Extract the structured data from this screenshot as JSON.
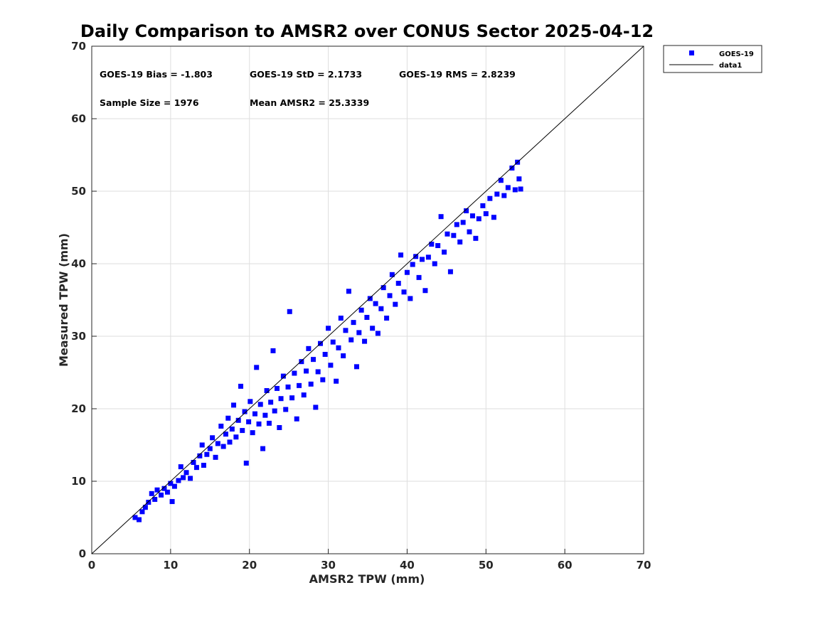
{
  "chart_data": {
    "type": "scatter",
    "title": "Daily Comparison to AMSR2 over CONUS Sector 2025-04-12",
    "xlabel": "AMSR2 TPW (mm)",
    "ylabel": "Measured TPW (mm)",
    "xlim": [
      0,
      70
    ],
    "ylim": [
      0,
      70
    ],
    "xticks": [
      "0",
      "10",
      "20",
      "30",
      "40",
      "50",
      "60",
      "70"
    ],
    "yticks": [
      "0",
      "10",
      "20",
      "30",
      "40",
      "50",
      "60",
      "70"
    ],
    "grid": true,
    "legend_position": "outside-top-right",
    "annotations": [
      "GOES-19 Bias = -1.803",
      "GOES-19 StD = 2.1733",
      "GOES-19 RMS = 2.8239",
      "Sample Size = 1976",
      "Mean AMSR2 = 25.3339"
    ],
    "series": [
      {
        "name": "GOES-19",
        "kind": "scatter",
        "marker": "square",
        "color": "#0000ff",
        "points": [
          [
            5.5,
            5.0
          ],
          [
            6.0,
            4.7
          ],
          [
            6.4,
            5.8
          ],
          [
            6.8,
            6.4
          ],
          [
            7.2,
            7.1
          ],
          [
            7.6,
            8.3
          ],
          [
            8.0,
            7.5
          ],
          [
            8.3,
            8.8
          ],
          [
            8.8,
            8.1
          ],
          [
            9.2,
            9.0
          ],
          [
            9.6,
            8.5
          ],
          [
            10.0,
            9.7
          ],
          [
            10.2,
            7.2
          ],
          [
            10.5,
            9.3
          ],
          [
            11.0,
            10.1
          ],
          [
            11.3,
            12.0
          ],
          [
            11.6,
            10.5
          ],
          [
            12.0,
            11.2
          ],
          [
            12.5,
            10.4
          ],
          [
            12.9,
            12.6
          ],
          [
            13.3,
            11.9
          ],
          [
            13.7,
            13.5
          ],
          [
            14.0,
            15.0
          ],
          [
            14.2,
            12.2
          ],
          [
            14.6,
            13.7
          ],
          [
            15.0,
            14.5
          ],
          [
            15.3,
            16.0
          ],
          [
            15.7,
            13.3
          ],
          [
            16.0,
            15.2
          ],
          [
            16.4,
            17.6
          ],
          [
            16.7,
            14.8
          ],
          [
            17.0,
            16.5
          ],
          [
            17.3,
            18.7
          ],
          [
            17.5,
            15.4
          ],
          [
            17.8,
            17.2
          ],
          [
            18.0,
            20.5
          ],
          [
            18.3,
            16.1
          ],
          [
            18.6,
            18.4
          ],
          [
            18.9,
            23.1
          ],
          [
            19.1,
            17.0
          ],
          [
            19.4,
            19.6
          ],
          [
            19.6,
            12.5
          ],
          [
            19.9,
            18.2
          ],
          [
            20.1,
            21.0
          ],
          [
            20.4,
            16.7
          ],
          [
            20.7,
            19.3
          ],
          [
            20.9,
            25.7
          ],
          [
            21.2,
            17.9
          ],
          [
            21.4,
            20.6
          ],
          [
            21.7,
            14.5
          ],
          [
            22.0,
            19.1
          ],
          [
            22.2,
            22.5
          ],
          [
            22.5,
            18.0
          ],
          [
            22.7,
            20.9
          ],
          [
            23.0,
            28.0
          ],
          [
            23.2,
            19.7
          ],
          [
            23.5,
            22.8
          ],
          [
            23.8,
            17.4
          ],
          [
            24.0,
            21.4
          ],
          [
            24.3,
            24.5
          ],
          [
            24.6,
            19.9
          ],
          [
            24.9,
            23.0
          ],
          [
            25.1,
            33.4
          ],
          [
            25.4,
            21.5
          ],
          [
            25.7,
            24.9
          ],
          [
            26.0,
            18.6
          ],
          [
            26.3,
            23.2
          ],
          [
            26.6,
            26.5
          ],
          [
            26.9,
            21.9
          ],
          [
            27.2,
            25.2
          ],
          [
            27.5,
            28.3
          ],
          [
            27.8,
            23.4
          ],
          [
            28.1,
            26.8
          ],
          [
            28.4,
            20.2
          ],
          [
            28.7,
            25.1
          ],
          [
            29.0,
            29.0
          ],
          [
            29.3,
            24.0
          ],
          [
            29.6,
            27.5
          ],
          [
            30.0,
            31.1
          ],
          [
            30.3,
            26.0
          ],
          [
            30.6,
            29.2
          ],
          [
            31.0,
            23.8
          ],
          [
            31.3,
            28.4
          ],
          [
            31.6,
            32.5
          ],
          [
            31.9,
            27.3
          ],
          [
            32.2,
            30.8
          ],
          [
            32.6,
            36.2
          ],
          [
            32.9,
            29.5
          ],
          [
            33.2,
            31.9
          ],
          [
            33.6,
            25.8
          ],
          [
            33.9,
            30.5
          ],
          [
            34.2,
            33.6
          ],
          [
            34.6,
            29.3
          ],
          [
            34.9,
            32.6
          ],
          [
            35.3,
            35.2
          ],
          [
            35.6,
            31.1
          ],
          [
            36.0,
            34.5
          ],
          [
            36.3,
            30.4
          ],
          [
            36.7,
            33.8
          ],
          [
            37.0,
            36.7
          ],
          [
            37.4,
            32.5
          ],
          [
            37.8,
            35.6
          ],
          [
            38.1,
            38.5
          ],
          [
            38.5,
            34.4
          ],
          [
            38.9,
            37.3
          ],
          [
            39.2,
            41.2
          ],
          [
            39.6,
            36.1
          ],
          [
            40.0,
            38.8
          ],
          [
            40.4,
            35.2
          ],
          [
            40.7,
            39.9
          ],
          [
            41.1,
            41.0
          ],
          [
            41.5,
            38.1
          ],
          [
            41.9,
            40.6
          ],
          [
            42.3,
            36.3
          ],
          [
            42.7,
            40.9
          ],
          [
            43.1,
            42.7
          ],
          [
            43.5,
            40.0
          ],
          [
            43.9,
            42.5
          ],
          [
            44.3,
            46.5
          ],
          [
            44.7,
            41.6
          ],
          [
            45.1,
            44.1
          ],
          [
            45.5,
            38.9
          ],
          [
            45.9,
            43.9
          ],
          [
            46.3,
            45.4
          ],
          [
            46.7,
            43.0
          ],
          [
            47.1,
            45.7
          ],
          [
            47.5,
            47.3
          ],
          [
            47.9,
            44.4
          ],
          [
            48.3,
            46.6
          ],
          [
            48.7,
            43.5
          ],
          [
            49.1,
            46.2
          ],
          [
            49.6,
            48.0
          ],
          [
            50.0,
            46.9
          ],
          [
            50.5,
            49.0
          ],
          [
            51.0,
            46.4
          ],
          [
            51.4,
            49.6
          ],
          [
            51.9,
            51.5
          ],
          [
            52.3,
            49.4
          ],
          [
            52.8,
            50.5
          ],
          [
            53.3,
            53.2
          ],
          [
            53.7,
            50.2
          ],
          [
            54.2,
            51.7
          ],
          [
            54.4,
            50.3
          ],
          [
            54.0,
            54.0
          ]
        ]
      },
      {
        "name": "data1",
        "kind": "line",
        "color": "#000000",
        "x": [
          0,
          70
        ],
        "y": [
          0,
          70
        ]
      }
    ]
  }
}
